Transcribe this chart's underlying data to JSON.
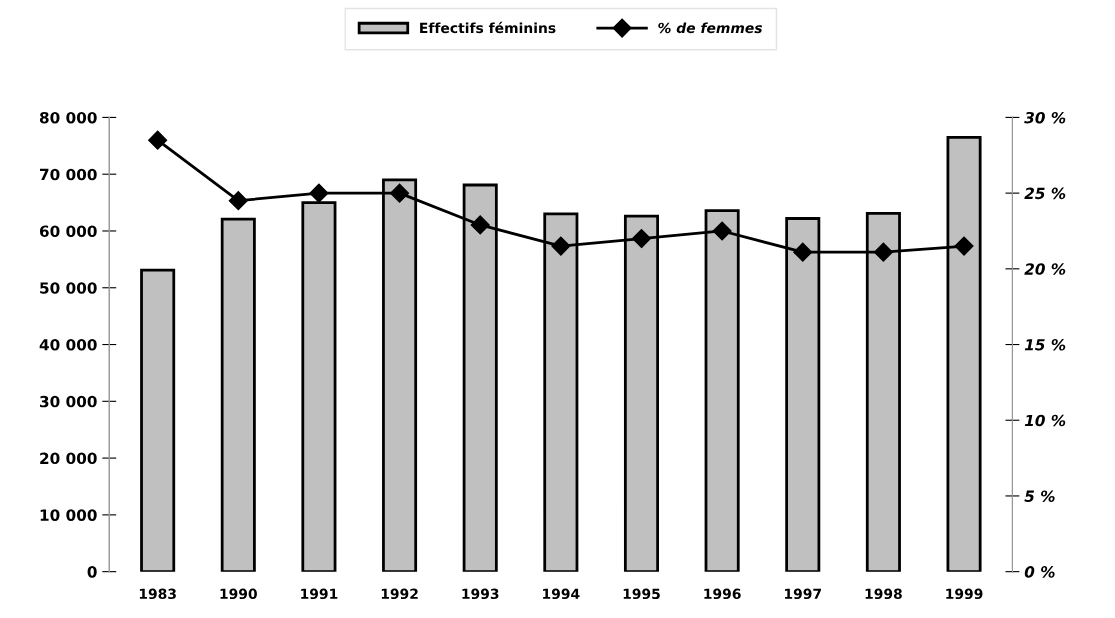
{
  "chart_data": {
    "type": "bar",
    "categories": [
      "1983",
      "1990",
      "1991",
      "1992",
      "1993",
      "1994",
      "1995",
      "1996",
      "1997",
      "1998",
      "1999"
    ],
    "series": [
      {
        "name": "Effectifs féminins",
        "color": "#c0c0c0",
        "values": [
          53100,
          62100,
          65000,
          69000,
          68100,
          63000,
          62600,
          63600,
          62200,
          63100,
          76500
        ]
      },
      {
        "name": "% de femmes",
        "type": "line",
        "axis": "y2",
        "color": "#000000",
        "marker": "diamond",
        "values": [
          28.5,
          24.5,
          25.0,
          25.0,
          22.9,
          21.5,
          22.0,
          22.5,
          21.1,
          21.1,
          21.5
        ]
      }
    ],
    "ylim": [
      0,
      80000
    ],
    "yticks": [
      {
        "value": 0,
        "label": "0"
      },
      {
        "value": 10000,
        "label": "10 000"
      },
      {
        "value": 20000,
        "label": "20 000"
      },
      {
        "value": 30000,
        "label": "30 000"
      },
      {
        "value": 40000,
        "label": "40 000"
      },
      {
        "value": 50000,
        "label": "50 000"
      },
      {
        "value": 60000,
        "label": "60 000"
      },
      {
        "value": 70000,
        "label": "70 000"
      },
      {
        "value": 80000,
        "label": "80 000"
      }
    ],
    "y2lim": [
      0,
      30
    ],
    "y2ticks": [
      {
        "value": 0,
        "label": "0 %"
      },
      {
        "value": 5,
        "label": "5 %"
      },
      {
        "value": 10,
        "label": "10 %"
      },
      {
        "value": 15,
        "label": "15 %"
      },
      {
        "value": 20,
        "label": "20 %"
      },
      {
        "value": 25,
        "label": "25 %"
      },
      {
        "value": 30,
        "label": "30 %"
      }
    ],
    "grid": false,
    "legend": "top"
  }
}
